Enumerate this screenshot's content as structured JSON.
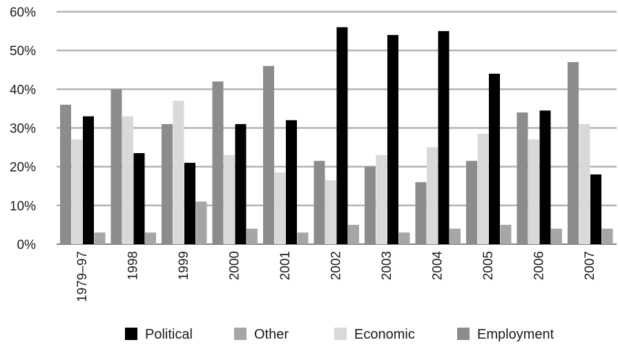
{
  "chart_data": {
    "type": "bar",
    "categories": [
      "1979–97",
      "1998",
      "1999",
      "2000",
      "2001",
      "2002",
      "2003",
      "2004",
      "2005",
      "2006",
      "2007"
    ],
    "series": [
      {
        "name": "Employment",
        "color": "#8c8c8c",
        "values": [
          36,
          40,
          31,
          42,
          46,
          21.5,
          20,
          16,
          21.5,
          34,
          47
        ]
      },
      {
        "name": "Economic",
        "color": "#d9d9d9",
        "values": [
          27,
          33,
          37,
          23,
          18.5,
          16.5,
          23,
          25,
          28.5,
          27,
          31
        ]
      },
      {
        "name": "Political",
        "color": "#000000",
        "values": [
          33,
          23.5,
          21,
          31,
          32,
          56,
          54,
          55,
          44,
          34.5,
          18
        ]
      },
      {
        "name": "Other",
        "color": "#a6a6a6",
        "values": [
          3,
          3,
          11,
          4,
          3,
          5,
          3,
          4,
          5,
          4,
          4
        ]
      }
    ],
    "y_ticks": [
      "0%",
      "10%",
      "20%",
      "30%",
      "40%",
      "50%",
      "60%"
    ],
    "ylim": [
      0,
      60
    ],
    "grid": true,
    "legend": {
      "placement": "bottom",
      "order": [
        "Political",
        "Other",
        "Economic",
        "Employment"
      ]
    }
  }
}
